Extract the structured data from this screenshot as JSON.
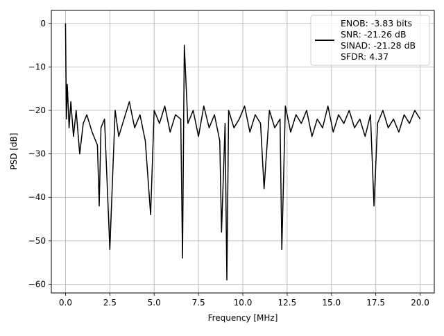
{
  "chart_data": {
    "type": "line",
    "title": "",
    "xlabel": "Frequency [MHz]",
    "ylabel": "PSD [dB]",
    "xlim": [
      -0.8,
      20.8
    ],
    "ylim": [
      -62,
      3
    ],
    "x_ticks": [
      0.0,
      2.5,
      5.0,
      7.5,
      10.0,
      12.5,
      15.0,
      17.5,
      20.0
    ],
    "x_tick_labels": [
      "0.0",
      "2.5",
      "5.0",
      "7.5",
      "10.0",
      "12.5",
      "15.0",
      "17.5",
      "20.0"
    ],
    "y_ticks": [
      0,
      -10,
      -20,
      -30,
      -40,
      -50,
      -60
    ],
    "y_tick_labels": [
      "0",
      "−10",
      "−20",
      "−30",
      "−40",
      "−50",
      "−60"
    ],
    "grid": true,
    "legend_placement": "top-right",
    "legend": [
      "ENOB: -3.83 bits",
      "SNR: -21.26 dB",
      "SINAD: -21.28 dB",
      "SFDR: 4.37"
    ],
    "series": [
      {
        "color": "#000000",
        "x": [
          0.0,
          0.05,
          0.1,
          0.2,
          0.3,
          0.45,
          0.6,
          0.8,
          1.0,
          1.2,
          1.5,
          1.8,
          1.9,
          2.0,
          2.2,
          2.5,
          2.8,
          3.0,
          3.3,
          3.6,
          3.9,
          4.2,
          4.5,
          4.8,
          5.0,
          5.3,
          5.6,
          5.9,
          6.2,
          6.5,
          6.6,
          6.7,
          6.9,
          7.2,
          7.5,
          7.8,
          8.1,
          8.4,
          8.7,
          8.8,
          9.0,
          9.1,
          9.2,
          9.5,
          9.8,
          10.1,
          10.4,
          10.7,
          11.0,
          11.2,
          11.5,
          11.8,
          12.1,
          12.2,
          12.4,
          12.7,
          13.0,
          13.3,
          13.6,
          13.9,
          14.2,
          14.5,
          14.8,
          15.1,
          15.4,
          15.7,
          16.0,
          16.3,
          16.6,
          16.9,
          17.2,
          17.4,
          17.6,
          17.9,
          18.2,
          18.5,
          18.8,
          19.1,
          19.4,
          19.7,
          20.0
        ],
        "y": [
          0,
          -22,
          -14,
          -24,
          -18,
          -26,
          -20,
          -30,
          -23,
          -21,
          -25,
          -28,
          -42,
          -24,
          -22,
          -52,
          -20,
          -26,
          -22,
          -18,
          -24,
          -21,
          -27,
          -44,
          -20,
          -23,
          -19,
          -25,
          -21,
          -22,
          -54,
          -5,
          -23,
          -20,
          -26,
          -19,
          -24,
          -21,
          -27,
          -48,
          -23,
          -59,
          -20,
          -24,
          -22,
          -19,
          -25,
          -21,
          -23,
          -38,
          -20,
          -24,
          -22,
          -52,
          -19,
          -25,
          -21,
          -23,
          -20,
          -26,
          -22,
          -24,
          -19,
          -25,
          -21,
          -23,
          -20,
          -24,
          -22,
          -26,
          -21,
          -42,
          -23,
          -20,
          -24,
          -22,
          -25,
          -21,
          -23,
          -20,
          -22
        ]
      }
    ]
  }
}
